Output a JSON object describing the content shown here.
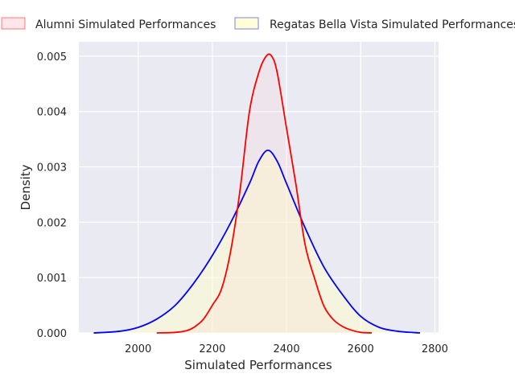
{
  "chart_data": {
    "type": "area",
    "xlabel": "Simulated Performances",
    "ylabel": "Density",
    "xlim": [
      1840,
      2810
    ],
    "ylim": [
      0,
      0.00526
    ],
    "x_ticks": [
      2000,
      2200,
      2400,
      2600,
      2800
    ],
    "x_tick_labels": [
      "2000",
      "2200",
      "2400",
      "2600",
      "2800"
    ],
    "y_ticks": [
      0.0,
      0.001,
      0.002,
      0.003,
      0.004,
      0.005
    ],
    "y_tick_labels": [
      "0.000",
      "0.001",
      "0.002",
      "0.003",
      "0.004",
      "0.005"
    ],
    "grid": true,
    "legend_position": "top",
    "series": [
      {
        "name": "Alumni Simulated Performances",
        "line_color": "#ff0000",
        "fill_color": "#ffc0cb",
        "fill_alpha": 0.15,
        "x": [
          2050,
          2100,
          2130,
          2150,
          2175,
          2200,
          2225,
          2250,
          2275,
          2300,
          2325,
          2345,
          2360,
          2375,
          2400,
          2425,
          2450,
          2475,
          2500,
          2525,
          2550,
          2575,
          2600,
          2630
        ],
        "y": [
          0.0,
          1e-05,
          4e-05,
          0.0001,
          0.00024,
          0.0005,
          0.0008,
          0.0015,
          0.0026,
          0.004,
          0.0047,
          0.005,
          0.005,
          0.0047,
          0.0037,
          0.0027,
          0.0016,
          0.001,
          0.0005,
          0.00025,
          0.00012,
          5e-05,
          1e-05,
          0.0
        ]
      },
      {
        "name": "Regatas Bella Vista Simulated Performances",
        "line_color": "#0000ff",
        "fill_color": "#ffffcc",
        "fill_alpha": 0.5,
        "x": [
          1880,
          1950,
          2000,
          2050,
          2100,
          2150,
          2200,
          2250,
          2300,
          2325,
          2350,
          2375,
          2400,
          2450,
          2500,
          2550,
          2600,
          2650,
          2700,
          2760
        ],
        "y": [
          0.0,
          3e-05,
          0.0001,
          0.00025,
          0.0005,
          0.0009,
          0.0014,
          0.002,
          0.0027,
          0.0031,
          0.0033,
          0.0031,
          0.0027,
          0.0019,
          0.0012,
          0.0007,
          0.0003,
          0.0001,
          3e-05,
          0.0
        ]
      }
    ]
  }
}
